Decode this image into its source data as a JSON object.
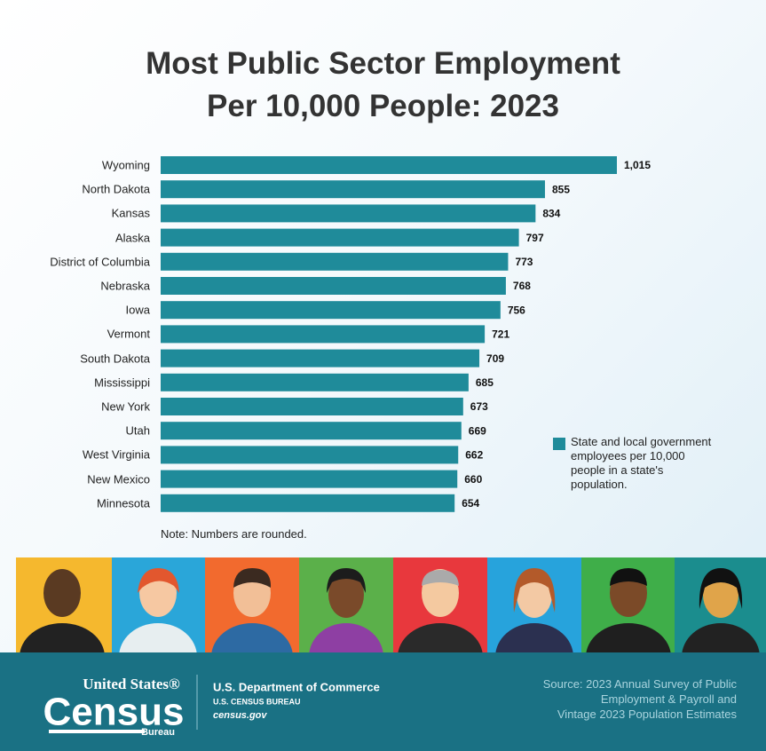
{
  "chart_data": {
    "type": "bar",
    "orientation": "horizontal",
    "title": [
      "Most Public Sector Employment",
      "Per 10,000 People: 2023"
    ],
    "categories": [
      "Wyoming",
      "North Dakota",
      "Kansas",
      "Alaska",
      "District of Columbia",
      "Nebraska",
      "Iowa",
      "Vermont",
      "South Dakota",
      "Mississippi",
      "New York",
      "Utah",
      "West Virginia",
      "New Mexico",
      "Minnesota"
    ],
    "series": [
      {
        "name": "State and local government employees per 10,000 people in a state's population.",
        "color": "#1f8b9a",
        "values": [
          1015,
          855,
          834,
          797,
          773,
          768,
          756,
          721,
          709,
          685,
          673,
          669,
          662,
          660,
          654
        ],
        "value_labels": [
          "1,015",
          "855",
          "834",
          "797",
          "773",
          "768",
          "756",
          "721",
          "709",
          "685",
          "673",
          "669",
          "662",
          "660",
          "654"
        ]
      }
    ],
    "note": "Note: Numbers are rounded."
  },
  "footer": {
    "logo_top": "United States®",
    "logo_main": "Census",
    "logo_bottom": "Bureau",
    "department": "U.S. Department of Commerce",
    "bureau": "U.S. CENSUS BUREAU",
    "website": "census.gov",
    "source": [
      "Source: 2023 Annual Survey of Public",
      "Employment & Payroll and",
      "Vintage 2023 Population Estimates"
    ]
  }
}
